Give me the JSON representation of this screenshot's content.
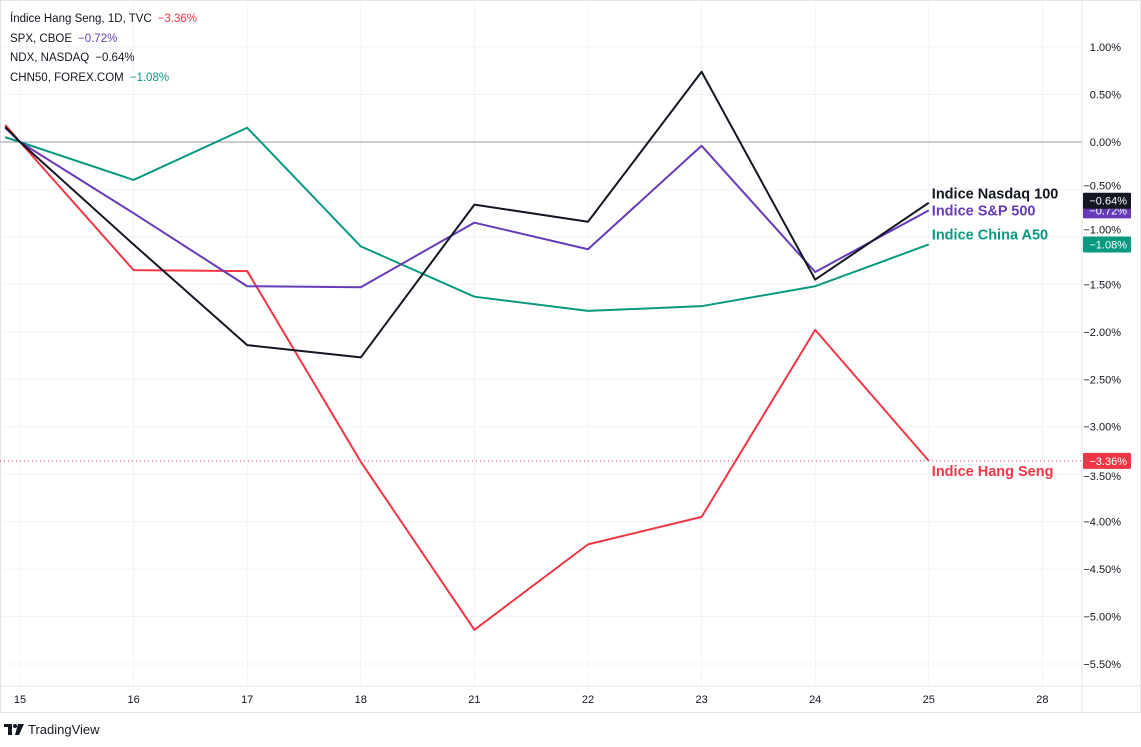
{
  "legend": [
    {
      "label": "Índice Hang Seng, 1D, TVC",
      "value": "−3.36%",
      "color": "#f23645"
    },
    {
      "label": "SPX, CBOE",
      "value": "−0.72%",
      "color": "#673ab7"
    },
    {
      "label": "NDX, NASDAQ",
      "value": "−0.64%",
      "color": "#131722"
    },
    {
      "label": "CHN50, FOREX.COM",
      "value": "−1.08%",
      "color": "#089981"
    }
  ],
  "footer": {
    "brand": "TradingView"
  },
  "chart_data": {
    "type": "line",
    "title": "",
    "xlabel": "",
    "ylabel": "",
    "x_ticks": [
      "15",
      "16",
      "17",
      "18",
      "21",
      "22",
      "23",
      "24",
      "25",
      "28"
    ],
    "y_ticks": [
      "1.00%",
      "0.50%",
      "0.00%",
      "−0.50%",
      "−1.00%",
      "−1.50%",
      "−2.00%",
      "−2.50%",
      "−3.00%",
      "−3.50%",
      "−4.00%",
      "−4.50%",
      "−5.00%",
      "−5.50%"
    ],
    "y_tick_values": [
      1.0,
      0.5,
      0.0,
      -0.5,
      -1.0,
      -1.5,
      -2.0,
      -2.5,
      -3.0,
      -3.5,
      -4.0,
      -4.5,
      -5.0,
      -5.5
    ],
    "ylim": [
      -5.8,
      1.5
    ],
    "x_index": [
      -0.13,
      0,
      1,
      2,
      3,
      4,
      5,
      6,
      7,
      8
    ],
    "series": [
      {
        "name": "Indice Hang Seng",
        "color": "#f23645",
        "last_label": "−3.36%",
        "values": [
          0.18,
          0,
          -1.35,
          -1.36,
          -3.37,
          -5.14,
          -4.24,
          -3.95,
          -1.98,
          -3.36
        ]
      },
      {
        "name": "Indice China A50",
        "color": "#089981",
        "last_label": "−1.08%",
        "values": [
          0.05,
          0,
          -0.4,
          0.15,
          -1.1,
          -1.63,
          -1.78,
          -1.73,
          -1.52,
          -1.08
        ]
      },
      {
        "name": "Indice S&P 500",
        "color": "#673ab7",
        "last_label": "−0.72%",
        "values": [
          0.15,
          0,
          -0.75,
          -1.52,
          -1.53,
          -0.85,
          -1.13,
          -0.04,
          -1.37,
          -0.72
        ]
      },
      {
        "name": "Indice Nasdaq 100",
        "color": "#131722",
        "last_label": "−0.64%",
        "values": [
          0.16,
          0,
          -1.08,
          -2.14,
          -2.27,
          -0.66,
          -0.84,
          0.74,
          -1.45,
          -0.64
        ]
      }
    ],
    "reference_line": {
      "value": -3.36,
      "color": "#f23645",
      "style": "dotted"
    },
    "grid": true,
    "legend_position": "top-left"
  }
}
